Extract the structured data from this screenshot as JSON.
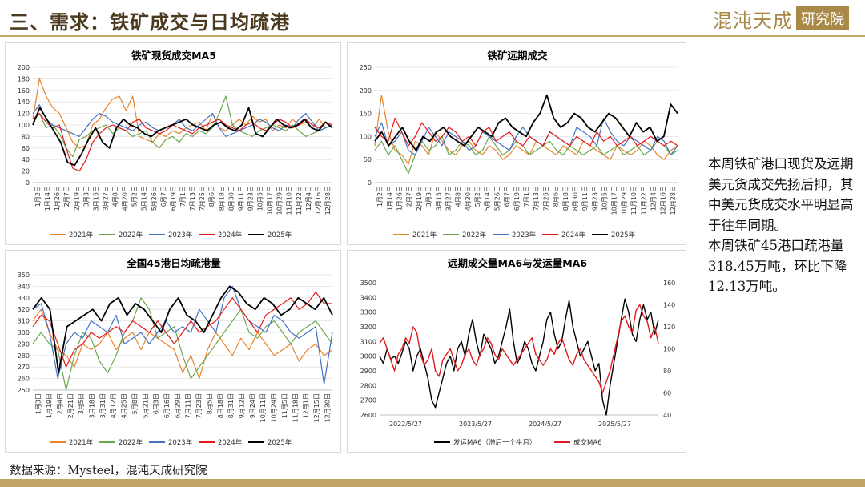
{
  "header": {
    "title": "三、需求：铁矿成交与日均疏港",
    "logo_text": "混沌天成",
    "logo_box": "研究院"
  },
  "commentary": {
    "paragraph1": "本周铁矿港口现货及远期美元货成交先扬后抑，其中美元货成交水平明显高于往年同期。",
    "paragraph2": "本周铁矿45港口疏港量318.45万吨，环比下降12.13万吨。"
  },
  "footer": {
    "source": "数据来源：Mysteel，混沌天成研究院"
  },
  "colors": {
    "y2021": "#e8842a",
    "y2022": "#6aa84f",
    "y2023": "#4472c4",
    "y2024": "#e31a1c",
    "y2025": "#000000",
    "accent": "#c2a467"
  },
  "chart_data": [
    {
      "id": "spot",
      "type": "line",
      "title": "铁矿现货成交MA5",
      "ylim": [
        0,
        200
      ],
      "yticks": [
        0,
        20,
        40,
        60,
        80,
        100,
        120,
        140,
        160,
        180,
        200
      ],
      "x_labels": [
        "1月2日",
        "1月14日",
        "1月26日",
        "2月7日",
        "2月19日",
        "3月3日",
        "3月15日",
        "3月27日",
        "4月8日",
        "4月20日",
        "5月2日",
        "5月14日",
        "5月26日",
        "6月7日",
        "6月19日",
        "7月1日",
        "7月13日",
        "7月25日",
        "8月6日",
        "8月18日",
        "8月30日",
        "9月11日",
        "9月23日",
        "10月5日",
        "10月17日",
        "10月29日",
        "11月10日",
        "11月22日",
        "12月4日",
        "12月16日",
        "12月28日"
      ],
      "series": [
        {
          "name": "2021年",
          "color": "#e8842a",
          "values": [
            110,
            180,
            150,
            130,
            120,
            95,
            70,
            60,
            65,
            100,
            110,
            130,
            145,
            150,
            125,
            150,
            80,
            75,
            70,
            85,
            80,
            90,
            85,
            95,
            100,
            105,
            90,
            120,
            95,
            90,
            100,
            110,
            100,
            115,
            105,
            110,
            90,
            100,
            95,
            110,
            100,
            105,
            95,
            110,
            95,
            100
          ]
        },
        {
          "name": "2022年",
          "color": "#6aa84f",
          "values": [
            105,
            120,
            95,
            100,
            85,
            60,
            45,
            75,
            80,
            90,
            95,
            100,
            85,
            95,
            90,
            80,
            85,
            90,
            70,
            60,
            75,
            80,
            70,
            85,
            80,
            90,
            85,
            95,
            120,
            150,
            100,
            90,
            85,
            80,
            90,
            95,
            100,
            95,
            90,
            100,
            90,
            80,
            85,
            90,
            95,
            100
          ]
        },
        {
          "name": "2023年",
          "color": "#4472c4",
          "values": [
            120,
            135,
            110,
            100,
            95,
            90,
            85,
            80,
            95,
            110,
            120,
            115,
            105,
            100,
            95,
            90,
            100,
            105,
            95,
            90,
            95,
            100,
            110,
            95,
            90,
            100,
            110,
            120,
            95,
            80,
            85,
            90,
            95,
            100,
            110,
            105,
            95,
            90,
            100,
            95,
            110,
            120,
            105,
            90,
            95,
            100
          ]
        },
        {
          "name": "2024年",
          "color": "#e31a1c",
          "values": [
            110,
            120,
            105,
            95,
            100,
            60,
            25,
            20,
            40,
            70,
            85,
            95,
            100,
            95,
            90,
            105,
            110,
            95,
            90,
            85,
            90,
            100,
            95,
            90,
            85,
            95,
            100,
            105,
            110,
            100,
            95,
            90,
            100,
            105,
            95,
            90,
            100,
            110,
            105,
            95,
            100,
            110,
            100,
            95,
            105,
            100
          ]
        },
        {
          "name": "2025年",
          "color": "#000000",
          "values": [
            100,
            130,
            110,
            90,
            70,
            35,
            30,
            50,
            75,
            95,
            70,
            60,
            95,
            110,
            100,
            95,
            85,
            80,
            90,
            95,
            100,
            105,
            110,
            100,
            95,
            90,
            100,
            105,
            95,
            90,
            100,
            130,
            85,
            80,
            95,
            110,
            100,
            95,
            100,
            110,
            95,
            90,
            105,
            95
          ]
        }
      ],
      "legend": [
        "2021年",
        "2022年",
        "2023年",
        "2024年",
        "2025年"
      ]
    },
    {
      "id": "forward",
      "type": "line",
      "title": "铁矿远期成交",
      "ylim": [
        0,
        250
      ],
      "yticks": [
        0,
        50,
        100,
        150,
        200,
        250
      ],
      "x_labels": [
        "1月2日",
        "1月14日",
        "1月26日",
        "2月7日",
        "2月19日",
        "3月3日",
        "3月15日",
        "3月27日",
        "4月8日",
        "4月20日",
        "5月2日",
        "5月14日",
        "5月26日",
        "6月7日",
        "6月19日",
        "7月1日",
        "7月13日",
        "7月25日",
        "8月6日",
        "8月18日",
        "8月30日",
        "9月11日",
        "9月23日",
        "10月5日",
        "10月17日",
        "10月29日",
        "11月10日",
        "11月22日",
        "12月4日",
        "12月16日",
        "12月28日"
      ],
      "series": [
        {
          "name": "2021年",
          "color": "#e8842a",
          "values": [
            80,
            190,
            110,
            70,
            60,
            40,
            90,
            80,
            60,
            110,
            90,
            70,
            60,
            80,
            90,
            70,
            60,
            80,
            70,
            50,
            60,
            80,
            70,
            60,
            90,
            80,
            70,
            60,
            80,
            70,
            60,
            90,
            80,
            70,
            60,
            50,
            80,
            70,
            60,
            70,
            90,
            80,
            60,
            50,
            70,
            80
          ]
        },
        {
          "name": "2022年",
          "color": "#6aa84f",
          "values": [
            70,
            90,
            60,
            80,
            50,
            20,
            60,
            90,
            70,
            80,
            100,
            60,
            70,
            90,
            80,
            60,
            70,
            100,
            80,
            60,
            70,
            90,
            80,
            60,
            70,
            80,
            90,
            70,
            60,
            80,
            70,
            60,
            70,
            80,
            60,
            70,
            80,
            60,
            70,
            80,
            60,
            70,
            90,
            80,
            60,
            70
          ]
        },
        {
          "name": "2023年",
          "color": "#4472c4",
          "values": [
            100,
            130,
            80,
            90,
            110,
            70,
            60,
            90,
            120,
            100,
            80,
            110,
            100,
            90,
            70,
            80,
            110,
            100,
            90,
            80,
            70,
            100,
            120,
            100,
            90,
            80,
            110,
            100,
            90,
            80,
            120,
            110,
            100,
            80,
            140,
            110,
            90,
            80,
            100,
            90,
            80,
            70,
            100,
            90,
            60,
            80
          ]
        },
        {
          "name": "2024年",
          "color": "#e31a1c",
          "values": [
            120,
            100,
            90,
            140,
            110,
            80,
            100,
            130,
            110,
            90,
            100,
            120,
            110,
            90,
            100,
            80,
            110,
            120,
            90,
            100,
            110,
            90,
            80,
            100,
            90,
            80,
            110,
            100,
            90,
            80,
            100,
            90,
            80,
            110,
            90,
            100,
            80,
            90,
            100,
            80,
            90,
            100,
            90,
            80,
            90,
            80
          ]
        },
        {
          "name": "2025年",
          "color": "#000000",
          "values": [
            90,
            110,
            80,
            100,
            120,
            90,
            70,
            100,
            90,
            110,
            120,
            100,
            90,
            80,
            100,
            120,
            110,
            100,
            130,
            140,
            120,
            110,
            100,
            130,
            150,
            190,
            140,
            120,
            130,
            150,
            140,
            120,
            110,
            130,
            150,
            140,
            120,
            100,
            130,
            110,
            120,
            90,
            100,
            170,
            150
          ]
        }
      ],
      "legend": [
        "2021年",
        "2022年",
        "2023年",
        "2024年",
        "2025年"
      ]
    },
    {
      "id": "port",
      "type": "line",
      "title": "全国45港日均疏港量",
      "ylim": [
        250,
        350
      ],
      "yticks": [
        250,
        260,
        270,
        280,
        290,
        300,
        310,
        320,
        330,
        340,
        350
      ],
      "x_labels": [
        "1月3日",
        "1月19日",
        "2月4日",
        "2月21日",
        "3月5日",
        "3月18日",
        "3月31日",
        "4月12日",
        "4月25日",
        "5月8日",
        "5月21日",
        "6月3日",
        "6月16日",
        "6月29日",
        "7月11日",
        "7月23日",
        "8月5日",
        "8月18日",
        "8月31日",
        "9月12日",
        "9月24日",
        "10月11日",
        "10月24日",
        "11月5日",
        "11月18日",
        "12月1日",
        "12月15日",
        "12月30日"
      ],
      "series": [
        {
          "name": "2021年",
          "color": "#e8842a",
          "values": [
            310,
            320,
            300,
            285,
            280,
            270,
            290,
            285,
            290,
            300,
            285,
            295,
            300,
            285,
            300,
            295,
            290,
            285,
            265,
            280,
            260,
            285,
            300,
            290,
            280,
            295,
            285,
            300,
            290,
            280,
            285,
            290,
            275,
            285,
            290,
            280,
            285
          ]
        },
        {
          "name": "2022年",
          "color": "#6aa84f",
          "values": [
            290,
            300,
            290,
            285,
            250,
            280,
            300,
            295,
            275,
            265,
            280,
            300,
            310,
            330,
            320,
            295,
            300,
            305,
            280,
            260,
            270,
            280,
            290,
            300,
            310,
            320,
            300,
            295,
            305,
            310,
            300,
            290,
            300,
            305,
            310,
            300,
            290
          ]
        },
        {
          "name": "2023年",
          "color": "#4472c4",
          "values": [
            320,
            325,
            300,
            260,
            290,
            300,
            295,
            310,
            305,
            300,
            315,
            290,
            295,
            300,
            290,
            300,
            310,
            300,
            305,
            300,
            320,
            310,
            300,
            330,
            340,
            320,
            310,
            305,
            300,
            315,
            310,
            300,
            295,
            300,
            305,
            255,
            300
          ]
        },
        {
          "name": "2024年",
          "color": "#e31a1c",
          "values": [
            305,
            315,
            310,
            290,
            270,
            285,
            290,
            300,
            295,
            300,
            305,
            300,
            310,
            305,
            300,
            310,
            300,
            290,
            300,
            310,
            300,
            305,
            310,
            320,
            330,
            320,
            310,
            300,
            315,
            320,
            325,
            330,
            320,
            325,
            335,
            325,
            325
          ]
        },
        {
          "name": "2025年",
          "color": "#000000",
          "values": [
            320,
            330,
            320,
            265,
            305,
            310,
            315,
            320,
            310,
            325,
            330,
            315,
            325,
            320,
            310,
            300,
            320,
            330,
            315,
            310,
            300,
            315,
            330,
            340,
            335,
            325,
            320,
            330,
            325,
            315,
            320,
            330,
            325,
            320,
            330,
            315
          ]
        }
      ],
      "legend": [
        "2021年",
        "2022年",
        "2023年",
        "2024年",
        "2025年"
      ]
    },
    {
      "id": "ma6",
      "type": "line",
      "title": "远期成交量MA6与发运量MA6",
      "ylim": [
        2600,
        3500
      ],
      "y2lim": [
        40,
        160
      ],
      "yticks": [
        2600,
        2700,
        2800,
        2900,
        3000,
        3100,
        3200,
        3300,
        3400,
        3500
      ],
      "y2ticks": [
        40,
        60,
        80,
        100,
        120,
        140,
        160
      ],
      "x_labels": [
        "2022/5/27",
        "2023/5/27",
        "2024/5/27",
        "2025/5/27"
      ],
      "series": [
        {
          "name": "发运MA6（滞后一个半月）",
          "color": "#000000",
          "axis": "left",
          "values": [
            3000,
            2950,
            3050,
            2980,
            3000,
            2950,
            3020,
            3100,
            3050,
            2900,
            3000,
            3050,
            2950,
            2850,
            2700,
            2650,
            2750,
            2850,
            2950,
            3000,
            2900,
            3050,
            3100,
            3000,
            3150,
            3250,
            3100,
            3000,
            3150,
            3100,
            3050,
            2950,
            3000,
            3100,
            3200,
            3320,
            3100,
            2950,
            3000,
            3100,
            3050,
            2950,
            2900,
            3000,
            3100,
            3250,
            3300,
            3150,
            3050,
            3100,
            3250,
            3380,
            3200,
            3100,
            3000,
            3050,
            3100,
            3000,
            2900,
            2950,
            2700,
            2600,
            2800,
            2950,
            3100,
            3250,
            3390,
            3300,
            3150,
            3100,
            3250,
            3350,
            3250,
            3300,
            3150,
            3250
          ]
        },
        {
          "name": "成交MA6",
          "color": "#e31a1c",
          "axis": "right",
          "values": [
            105,
            110,
            100,
            90,
            80,
            95,
            100,
            110,
            105,
            120,
            115,
            95,
            85,
            90,
            100,
            80,
            75,
            90,
            95,
            100,
            90,
            80,
            85,
            95,
            100,
            90,
            85,
            95,
            100,
            110,
            105,
            95,
            90,
            100,
            95,
            90,
            85,
            90,
            95,
            100,
            105,
            110,
            95,
            90,
            85,
            90,
            100,
            95,
            105,
            110,
            100,
            90,
            85,
            95,
            100,
            90,
            85,
            80,
            75,
            70,
            60,
            70,
            80,
            95,
            110,
            125,
            130,
            120,
            115,
            135,
            140,
            130,
            125,
            110,
            120,
            105
          ]
        }
      ],
      "legend": [
        "发运MA6（滞后一个半月）",
        "成交MA6"
      ]
    }
  ]
}
